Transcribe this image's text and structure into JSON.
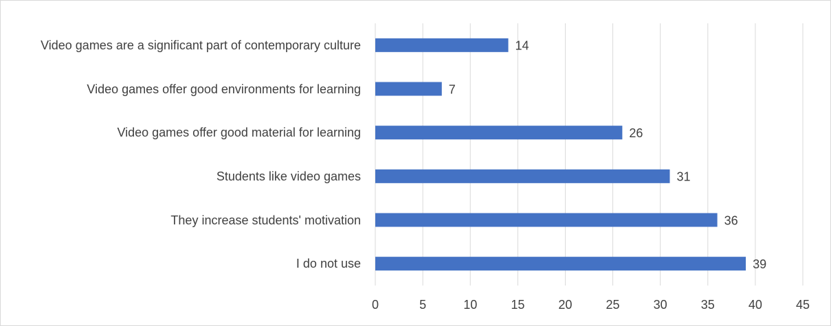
{
  "chart_data": {
    "type": "bar",
    "orientation": "horizontal",
    "categories": [
      "Video games are a significant part of contemporary culture",
      "Video games offer good environments for learning",
      "Video games offer good material for learning",
      "Students like video games",
      "They increase students' motivation",
      "I do not use"
    ],
    "values": [
      14,
      7,
      26,
      31,
      36,
      39
    ],
    "color": "#4472c4",
    "xlim": [
      0,
      45
    ],
    "xticks": [
      0,
      5,
      10,
      15,
      20,
      25,
      30,
      35,
      40,
      45
    ],
    "grid": true
  }
}
